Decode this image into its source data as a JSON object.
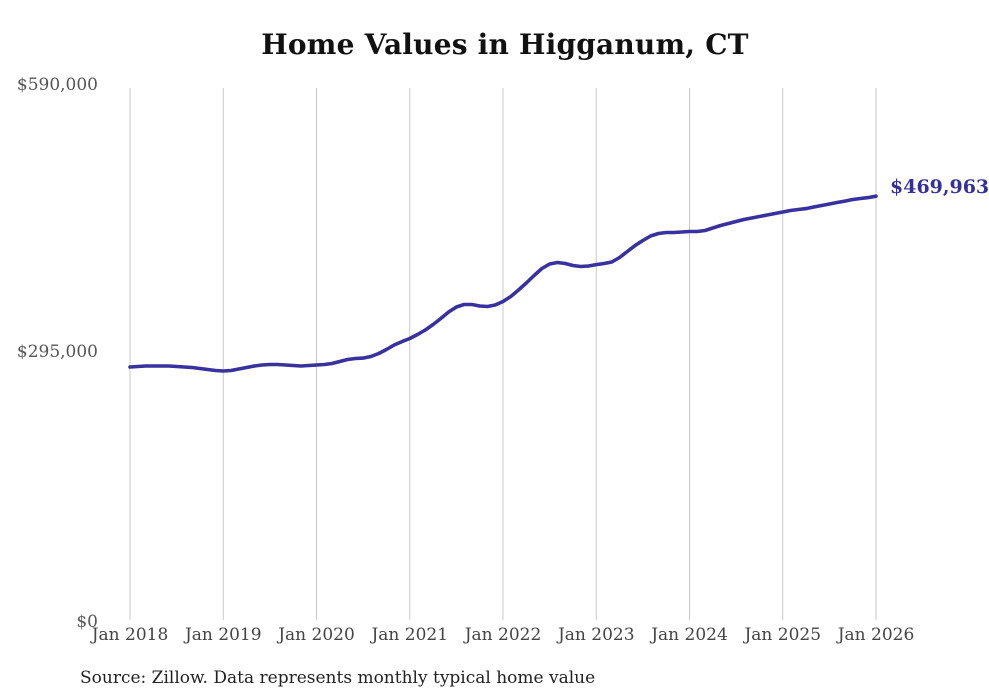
{
  "title": "Home Values in Higganum, CT",
  "source_note": "Source: Zillow. Data represents monthly typical home value",
  "end_label": "$469,963",
  "colors": {
    "line": "#38319e",
    "end_label": "#332f9e",
    "gridline": "#c9c9c9",
    "axis_text": "#555555",
    "x_axis_text": "#444444",
    "title_text": "#111111",
    "source_text": "#222222",
    "background": "#ffffff"
  },
  "y_axis": {
    "labels": [
      "$590,000",
      "$295,000",
      "$0"
    ],
    "max": 590000,
    "mid": 295000,
    "min": 0
  },
  "chart_data": {
    "type": "line",
    "title": "Home Values in Higganum, CT",
    "unit": "USD",
    "frequency": "monthly",
    "start_month": "Jan 2018",
    "end_month": "Jan 2026",
    "x_tick_labels": [
      "Jan 2018",
      "Jan 2019",
      "Jan 2020",
      "Jan 2021",
      "Jan 2022",
      "Jan 2023",
      "Jan 2024",
      "Jan 2025",
      "Jan 2026"
    ],
    "months_per_tick": 12,
    "ylim": [
      0,
      590000
    ],
    "grid": "vertical-yearly-only",
    "legend": "none",
    "final_value": 469963,
    "final_value_label": "$469,963",
    "values": [
      280600,
      281100,
      281700,
      281700,
      281700,
      281700,
      281100,
      280600,
      280000,
      278900,
      277800,
      276700,
      276100,
      276700,
      278400,
      280000,
      281700,
      282800,
      283300,
      283300,
      282800,
      282200,
      281700,
      282200,
      282800,
      283300,
      284500,
      286700,
      288900,
      290000,
      290500,
      292200,
      295500,
      300000,
      305000,
      308800,
      312200,
      316600,
      321600,
      327700,
      334400,
      341600,
      347100,
      349900,
      349900,
      348200,
      347700,
      349300,
      353200,
      358800,
      366000,
      373700,
      382100,
      389800,
      394800,
      396500,
      395400,
      393200,
      392000,
      392600,
      394200,
      395400,
      397000,
      402000,
      408700,
      415300,
      420900,
      425900,
      428600,
      429800,
      429800,
      430300,
      430900,
      430900,
      432000,
      434700,
      437500,
      439700,
      441900,
      444200,
      445800,
      447500,
      449100,
      450800,
      452500,
      454100,
      455200,
      456300,
      458000,
      459700,
      461300,
      463000,
      464600,
      466300,
      467400,
      468500,
      469963
    ]
  }
}
